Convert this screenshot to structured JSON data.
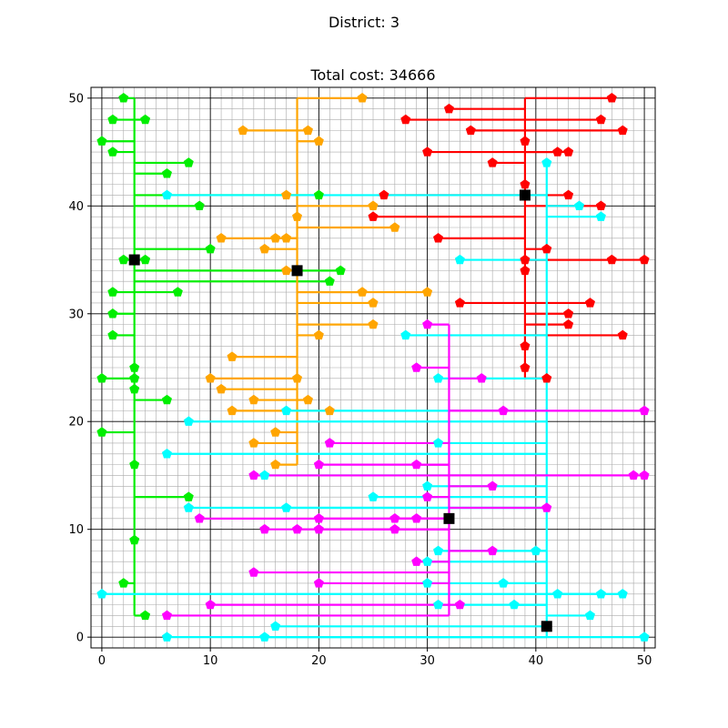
{
  "figure": {
    "suptitle": "District: 3"
  },
  "chart_data": {
    "type": "scatter",
    "title": "Total cost: 34666",
    "xlim": [
      -1,
      51
    ],
    "ylim": [
      -1,
      51
    ],
    "xticks": [
      0,
      10,
      20,
      30,
      40,
      50
    ],
    "yticks": [
      0,
      10,
      20,
      30,
      40,
      50
    ],
    "grid": "major and minor",
    "legend": "none",
    "trunk_layout": "vertical trunk at facility x, horizontal branches to each customer",
    "clusters": [
      {
        "color": "#00ee00",
        "facility": [
          3,
          35
        ],
        "trunk_y": [
          2,
          50
        ],
        "customers": [
          [
            2,
            50
          ],
          [
            1,
            48
          ],
          [
            4,
            48
          ],
          [
            0,
            46
          ],
          [
            1,
            45
          ],
          [
            8,
            44
          ],
          [
            6,
            43
          ],
          [
            20,
            41
          ],
          [
            9,
            40
          ],
          [
            10,
            36
          ],
          [
            2,
            35
          ],
          [
            4,
            35
          ],
          [
            22,
            34
          ],
          [
            21,
            33
          ],
          [
            1,
            32
          ],
          [
            7,
            32
          ],
          [
            1,
            30
          ],
          [
            1,
            28
          ],
          [
            3,
            25
          ],
          [
            0,
            24
          ],
          [
            3,
            24
          ],
          [
            3,
            23
          ],
          [
            6,
            22
          ],
          [
            0,
            19
          ],
          [
            3,
            16
          ],
          [
            8,
            13
          ],
          [
            3,
            9
          ],
          [
            2,
            5
          ],
          [
            4,
            2
          ]
        ]
      },
      {
        "color": "#ffa500",
        "facility": [
          18,
          34
        ],
        "trunk_y": [
          16,
          50
        ],
        "customers": [
          [
            24,
            50
          ],
          [
            13,
            47
          ],
          [
            19,
            47
          ],
          [
            20,
            46
          ],
          [
            17,
            41
          ],
          [
            25,
            40
          ],
          [
            18,
            39
          ],
          [
            27,
            38
          ],
          [
            11,
            37
          ],
          [
            16,
            37
          ],
          [
            17,
            37
          ],
          [
            15,
            36
          ],
          [
            17,
            34
          ],
          [
            24,
            32
          ],
          [
            30,
            32
          ],
          [
            25,
            31
          ],
          [
            25,
            29
          ],
          [
            20,
            28
          ],
          [
            12,
            26
          ],
          [
            10,
            24
          ],
          [
            18,
            24
          ],
          [
            11,
            23
          ],
          [
            14,
            22
          ],
          [
            19,
            22
          ],
          [
            12,
            21
          ],
          [
            21,
            21
          ],
          [
            16,
            19
          ],
          [
            14,
            18
          ],
          [
            16,
            16
          ]
        ]
      },
      {
        "color": "#ff0000",
        "facility": [
          39,
          41
        ],
        "trunk_y": [
          24,
          50
        ],
        "customers": [
          [
            47,
            50
          ],
          [
            32,
            49
          ],
          [
            28,
            48
          ],
          [
            46,
            48
          ],
          [
            34,
            47
          ],
          [
            48,
            47
          ],
          [
            39,
            46
          ],
          [
            30,
            45
          ],
          [
            42,
            45
          ],
          [
            43,
            45
          ],
          [
            36,
            44
          ],
          [
            39,
            42
          ],
          [
            26,
            41
          ],
          [
            43,
            41
          ],
          [
            46,
            40
          ],
          [
            25,
            39
          ],
          [
            31,
            37
          ],
          [
            41,
            36
          ],
          [
            39,
            35
          ],
          [
            47,
            35
          ],
          [
            50,
            35
          ],
          [
            39,
            34
          ],
          [
            33,
            31
          ],
          [
            45,
            31
          ],
          [
            43,
            30
          ],
          [
            43,
            29
          ],
          [
            48,
            28
          ],
          [
            39,
            27
          ],
          [
            39,
            25
          ],
          [
            41,
            24
          ]
        ]
      },
      {
        "color": "#00ffff",
        "facility": [
          41,
          1
        ],
        "trunk_y": [
          0,
          44
        ],
        "customers": [
          [
            41,
            44
          ],
          [
            6,
            41
          ],
          [
            44,
            40
          ],
          [
            46,
            39
          ],
          [
            33,
            35
          ],
          [
            28,
            28
          ],
          [
            31,
            24
          ],
          [
            17,
            21
          ],
          [
            8,
            20
          ],
          [
            31,
            18
          ],
          [
            6,
            17
          ],
          [
            15,
            15
          ],
          [
            30,
            14
          ],
          [
            25,
            13
          ],
          [
            8,
            12
          ],
          [
            17,
            12
          ],
          [
            31,
            8
          ],
          [
            40,
            8
          ],
          [
            30,
            7
          ],
          [
            30,
            5
          ],
          [
            37,
            5
          ],
          [
            0,
            4
          ],
          [
            42,
            4
          ],
          [
            46,
            4
          ],
          [
            48,
            4
          ],
          [
            31,
            3
          ],
          [
            38,
            3
          ],
          [
            45,
            2
          ],
          [
            16,
            1
          ],
          [
            6,
            0
          ],
          [
            15,
            0
          ],
          [
            50,
            0
          ]
        ]
      },
      {
        "color": "#ff00ff",
        "facility": [
          32,
          11
        ],
        "trunk_y": [
          2,
          29
        ],
        "customers": [
          [
            30,
            29
          ],
          [
            29,
            25
          ],
          [
            35,
            24
          ],
          [
            37,
            21
          ],
          [
            50,
            21
          ],
          [
            21,
            18
          ],
          [
            20,
            16
          ],
          [
            29,
            16
          ],
          [
            14,
            15
          ],
          [
            49,
            15
          ],
          [
            50,
            15
          ],
          [
            36,
            14
          ],
          [
            30,
            13
          ],
          [
            41,
            12
          ],
          [
            9,
            11
          ],
          [
            20,
            11
          ],
          [
            27,
            11
          ],
          [
            29,
            11
          ],
          [
            15,
            10
          ],
          [
            18,
            10
          ],
          [
            20,
            10
          ],
          [
            27,
            10
          ],
          [
            29,
            7
          ],
          [
            36,
            8
          ],
          [
            14,
            6
          ],
          [
            20,
            5
          ],
          [
            10,
            3
          ],
          [
            33,
            3
          ],
          [
            6,
            2
          ]
        ]
      }
    ]
  }
}
